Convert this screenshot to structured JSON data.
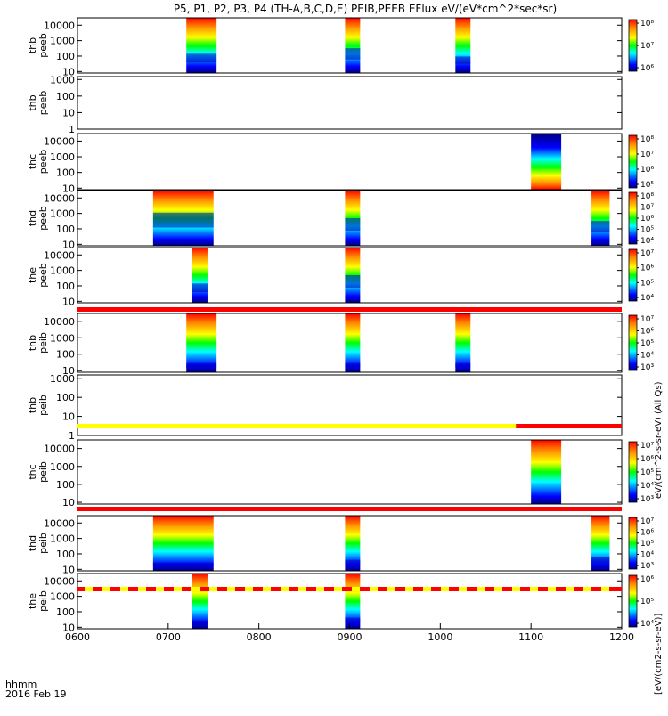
{
  "title": "P5, P1, P2, P3, P4 (TH-A,B,C,D,E) PEIB,PEEB EFlux eV/(eV*cm^2*sec*sr)",
  "colorbar_label": "[eV/(cm2-s-sr-eV)]",
  "colorbar_overlay_label": "eV/(cm^2-s-sr-eV) (All Qs)",
  "footer": {
    "unit_label": "hhmm",
    "date_label": "2016 Feb 19"
  },
  "chart_data": {
    "type": "heatmap",
    "x_axis": {
      "range": [
        "0600",
        "1200"
      ],
      "ticks": [
        "0600",
        "0700",
        "0800",
        "0900",
        "1000",
        "1100",
        "1200"
      ]
    },
    "colors": {
      "lowest": "#000080",
      "highest": "#ff0000",
      "flag_red": "#ff0000",
      "flag_yellow": "#ffff00"
    },
    "panels": [
      {
        "label_top": "thb",
        "label_bottom": "peeb",
        "ylim": [
          8,
          30000
        ],
        "yticks": [
          "10",
          "100",
          "1000",
          "10000"
        ],
        "cb": {
          "range": [
            5,
            8
          ],
          "ticks": [
            "10⁶",
            "10⁷",
            "10⁸"
          ]
        },
        "segments": [
          {
            "start": "0712",
            "end": "0732",
            "base": 0.35,
            "top": 0.8
          },
          {
            "start": "0857",
            "end": "0907",
            "base": 0.45,
            "top": 0.85
          },
          {
            "start": "1010",
            "end": "1020",
            "base": 0.3,
            "top": 0.75
          }
        ]
      },
      {
        "label_top": "thb",
        "label_bottom": "peeb",
        "ylim": [
          1,
          1500
        ],
        "yticks": [
          "1",
          "10",
          "100",
          "1000"
        ],
        "segments": []
      },
      {
        "label_top": "thc",
        "label_bottom": "peeb",
        "ylim": [
          8,
          30000
        ],
        "yticks": [
          "10",
          "100",
          "1000",
          "10000"
        ],
        "cb": {
          "range": [
            4,
            8
          ],
          "ticks": [
            "10⁵",
            "10⁶",
            "10⁷",
            "10⁸"
          ]
        },
        "segments": [
          {
            "start": "1100",
            "end": "1120",
            "base": 0.05,
            "top": 0.95,
            "inverted": true
          }
        ]
      },
      {
        "label_top": "thd",
        "label_bottom": "peeb",
        "ylim": [
          8,
          30000
        ],
        "yticks": [
          "10",
          "100",
          "1000",
          "10000"
        ],
        "cb": {
          "range": [
            3,
            8
          ],
          "ticks": [
            "10⁴",
            "10⁵",
            "10⁶",
            "10⁷",
            "10⁸"
          ]
        },
        "segments": [
          {
            "start": "0650",
            "end": "0730",
            "base": 0.6,
            "top": 1.0
          },
          {
            "start": "0857",
            "end": "0907",
            "base": 0.5,
            "top": 0.95
          },
          {
            "start": "1140",
            "end": "1152",
            "base": 0.45,
            "top": 0.9
          }
        ]
      },
      {
        "label_top": "the",
        "label_bottom": "peeb",
        "ylim": [
          8,
          30000
        ],
        "yticks": [
          "10",
          "100",
          "1000",
          "10000"
        ],
        "cb": {
          "range": [
            3,
            8
          ],
          "ticks": [
            "10⁴",
            "10⁵",
            "10⁶",
            "10⁷"
          ]
        },
        "segments": [
          {
            "start": "0716",
            "end": "0726",
            "base": 0.35,
            "top": 0.95
          },
          {
            "start": "0857",
            "end": "0907",
            "base": 0.5,
            "top": 0.95
          }
        ]
      },
      {
        "label_top": "thb",
        "label_bottom": "peib",
        "ylim": [
          8,
          30000
        ],
        "yticks": [
          "10",
          "100",
          "1000",
          "10000"
        ],
        "cb": {
          "range": [
            2,
            8
          ],
          "ticks": [
            "10³",
            "10⁴",
            "10⁵",
            "10⁶",
            "10⁷"
          ]
        },
        "segments": [
          {
            "start": "0712",
            "end": "0732",
            "base": 0.15,
            "top": 0.85
          },
          {
            "start": "0857",
            "end": "0907",
            "base": 0.15,
            "top": 0.85
          },
          {
            "start": "1010",
            "end": "1020",
            "base": 0.15,
            "top": 0.8
          }
        ]
      },
      {
        "label_top": "thb",
        "label_bottom": "peib",
        "ylim": [
          1,
          1500
        ],
        "yticks": [
          "1",
          "10",
          "100",
          "1000"
        ],
        "segments": []
      },
      {
        "label_top": "thc",
        "label_bottom": "peib",
        "ylim": [
          8,
          30000
        ],
        "yticks": [
          "10",
          "100",
          "1000",
          "10000"
        ],
        "cb": {
          "range": [
            2,
            7
          ],
          "ticks": [
            "10³",
            "10⁴",
            "10⁵",
            "10⁶",
            "10⁷"
          ]
        },
        "segments": [
          {
            "start": "1100",
            "end": "1120",
            "base": 0.0,
            "top": 0.9
          }
        ]
      },
      {
        "label_top": "thd",
        "label_bottom": "peib",
        "ylim": [
          8,
          30000
        ],
        "yticks": [
          "10",
          "100",
          "1000",
          "10000"
        ],
        "cb": {
          "range": [
            2,
            8
          ],
          "ticks": [
            "10³",
            "10⁴",
            "10⁵",
            "10⁶",
            "10⁷"
          ]
        },
        "segments": [
          {
            "start": "0650",
            "end": "0730",
            "base": 0.15,
            "top": 0.9
          },
          {
            "start": "0857",
            "end": "0907",
            "base": 0.2,
            "top": 0.85
          },
          {
            "start": "1140",
            "end": "1152",
            "base": 0.25,
            "top": 0.85
          }
        ]
      },
      {
        "label_top": "the",
        "label_bottom": "peib",
        "ylim": [
          8,
          30000
        ],
        "yticks": [
          "10",
          "100",
          "1000",
          "10000"
        ],
        "cb": {
          "range": [
            3,
            8
          ],
          "ticks": [
            "10⁴",
            "10⁵",
            "10⁶"
          ]
        },
        "segments": [
          {
            "start": "0716",
            "end": "0726",
            "base": 0.15,
            "top": 0.9
          },
          {
            "start": "0857",
            "end": "0907",
            "base": 0.2,
            "top": 0.85
          }
        ]
      }
    ],
    "flag_bars": [
      {
        "after_panel": 4,
        "pattern": "red"
      },
      {
        "after_panel": 6,
        "pattern": "yellow_then_red",
        "switch_at": "1050"
      },
      {
        "after_panel": 7,
        "pattern": "red"
      },
      {
        "after_panel": 8,
        "pattern": "mixed"
      }
    ]
  }
}
